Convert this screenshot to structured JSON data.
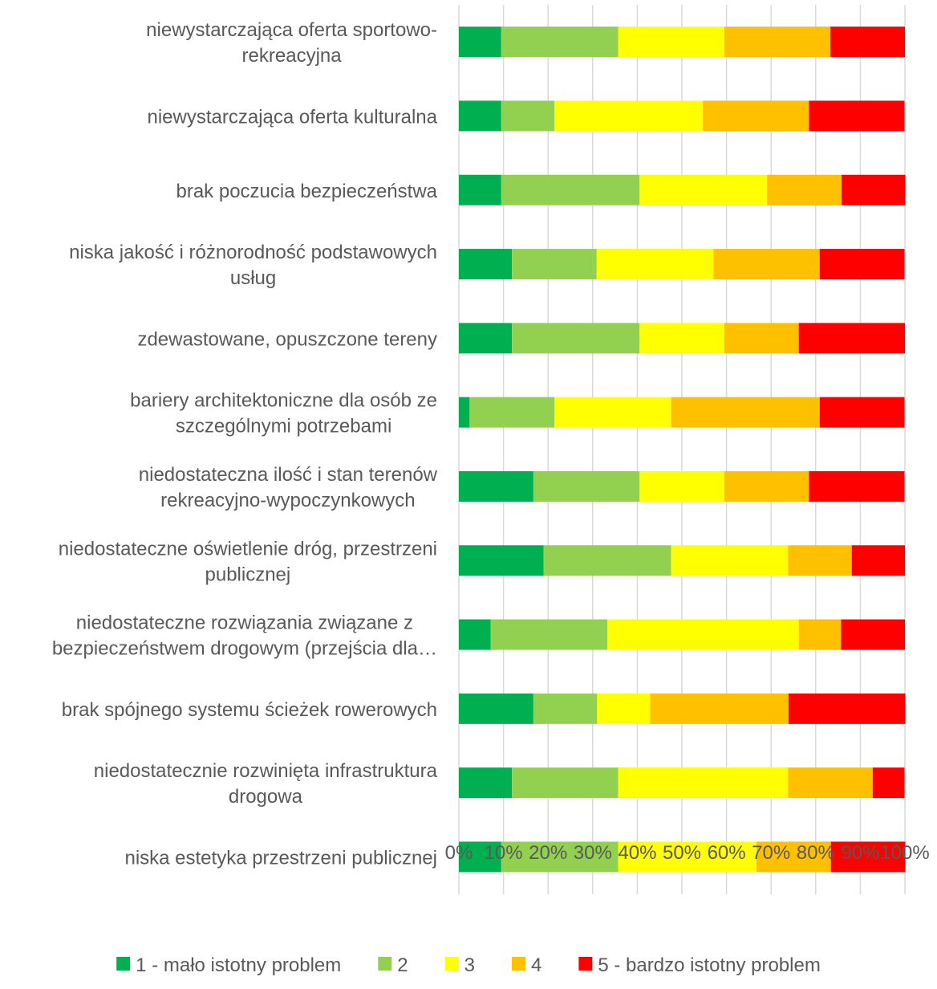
{
  "chart_data": {
    "type": "bar",
    "orientation": "horizontal",
    "stacked": "percent",
    "title": "",
    "xlabel": "",
    "ylabel": "",
    "xlim": [
      0,
      100
    ],
    "x_ticks": [
      "0%",
      "10%",
      "20%",
      "30%",
      "40%",
      "50%",
      "60%",
      "70%",
      "80%",
      "90%",
      "100%"
    ],
    "grid": "vertical",
    "legend_position": "bottom",
    "categories": [
      {
        "lines": [
          "niewystarczająca oferta sportowo-",
          "rekreacyjna"
        ]
      },
      {
        "lines": [
          "niewystarczająca oferta kulturalna"
        ]
      },
      {
        "lines": [
          "brak poczucia bezpieczeństwa"
        ]
      },
      {
        "lines": [
          "niska jakość i różnorodność podstawowych",
          "usług"
        ]
      },
      {
        "lines": [
          "zdewastowane, opuszczone tereny"
        ]
      },
      {
        "lines": [
          "bariery architektoniczne dla osób ze",
          "szczególnymi potrzebami"
        ]
      },
      {
        "lines": [
          "niedostateczna ilość i stan terenów",
          "rekreacyjno-wypoczynkowych"
        ]
      },
      {
        "lines": [
          "niedostateczne oświetlenie dróg, przestrzeni",
          "publicznej"
        ]
      },
      {
        "lines": [
          "niedostateczne rozwiązania związane z",
          "bezpieczeństwem drogowym (przejścia dla…"
        ]
      },
      {
        "lines": [
          "brak spójnego systemu ścieżek rowerowych"
        ]
      },
      {
        "lines": [
          "niedostatecznie rozwinięta infrastruktura",
          "drogowa"
        ]
      },
      {
        "lines": [
          "niska estetyka przestrzeni publicznej"
        ]
      }
    ],
    "series": [
      {
        "name": "1 - mało istotny problem",
        "color": "#00b050",
        "values": [
          9.5,
          9.5,
          9.5,
          11.9,
          11.9,
          2.4,
          16.7,
          19.0,
          7.1,
          16.7,
          11.9,
          9.5
        ]
      },
      {
        "name": "2",
        "color": "#92d050",
        "values": [
          26.2,
          11.9,
          31.0,
          19.0,
          28.6,
          19.0,
          23.8,
          28.6,
          26.2,
          14.3,
          23.8,
          26.2
        ]
      },
      {
        "name": "3",
        "color": "#ffff00",
        "values": [
          23.8,
          33.3,
          28.6,
          26.2,
          19.0,
          26.2,
          19.0,
          26.2,
          42.9,
          11.9,
          38.1,
          31.0
        ]
      },
      {
        "name": "4",
        "color": "#ffc000",
        "values": [
          23.8,
          23.8,
          16.7,
          23.8,
          16.7,
          33.3,
          19.0,
          14.3,
          9.5,
          31.0,
          19.0,
          16.7
        ]
      },
      {
        "name": "5 - bardzo istotny problem",
        "color": "#ff0000",
        "values": [
          16.7,
          21.4,
          14.3,
          19.0,
          23.8,
          19.0,
          21.4,
          11.9,
          14.3,
          26.2,
          7.1,
          16.7
        ]
      }
    ]
  }
}
